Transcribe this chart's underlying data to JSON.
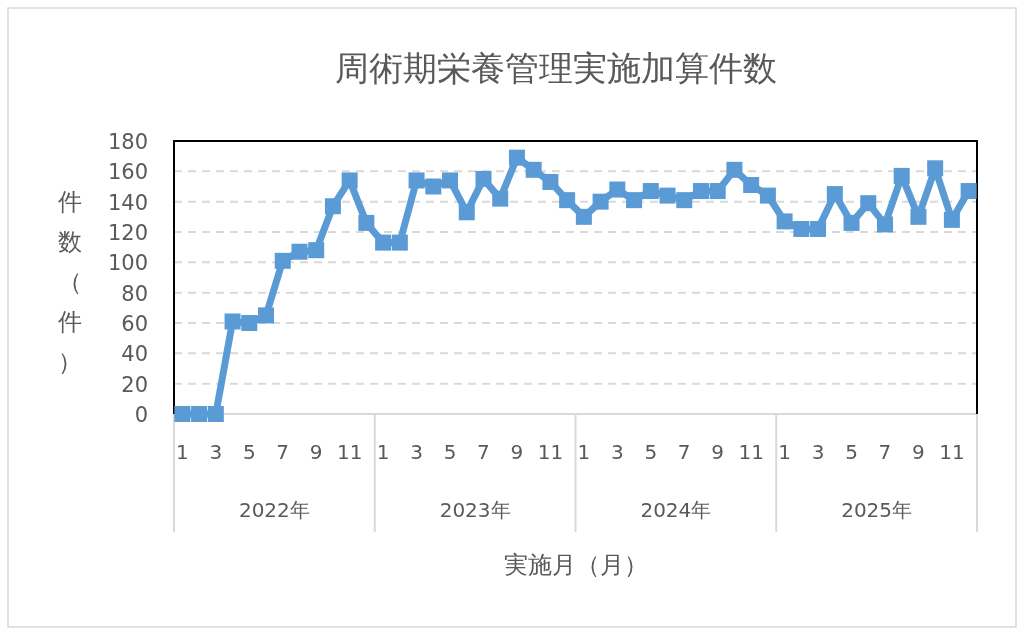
{
  "chart_data": {
    "type": "line",
    "title": "周術期栄養管理実施加算件数",
    "xlabel": "実施月（月）",
    "ylabel": "件数（件）",
    "categories": [
      "1",
      null,
      "3",
      null,
      "5",
      null,
      "7",
      null,
      "9",
      null,
      "11",
      null,
      "1",
      null,
      "3",
      null,
      "5",
      null,
      "7",
      null,
      "9",
      null,
      "11",
      null,
      "1",
      null,
      "3",
      null,
      "5",
      null,
      "7",
      null,
      "9",
      null,
      "11",
      null,
      "1",
      null,
      "3",
      null,
      "5",
      null,
      "7",
      null,
      "9",
      null,
      "11",
      null
    ],
    "annotations": [
      "2022年",
      "2023年",
      "2024年",
      "2025年"
    ],
    "series": [
      {
        "color": "#5b9bd5",
        "values": [
          0,
          0,
          0,
          61,
          60,
          65,
          101,
          107,
          108,
          137,
          154,
          126,
          113,
          113,
          154,
          150,
          154,
          133,
          155,
          142,
          169,
          161,
          153,
          141,
          130,
          140,
          148,
          141,
          147,
          144,
          141,
          147,
          147,
          161,
          151,
          144,
          127,
          122,
          122,
          145,
          126,
          139,
          125,
          157,
          130,
          162,
          128,
          147
        ]
      }
    ],
    "ylim": [
      0,
      180
    ],
    "yticks": [
      0,
      20,
      40,
      60,
      80,
      100,
      120,
      140,
      160,
      180
    ],
    "grid": "y",
    "marker": "square",
    "line_style": "solid"
  }
}
